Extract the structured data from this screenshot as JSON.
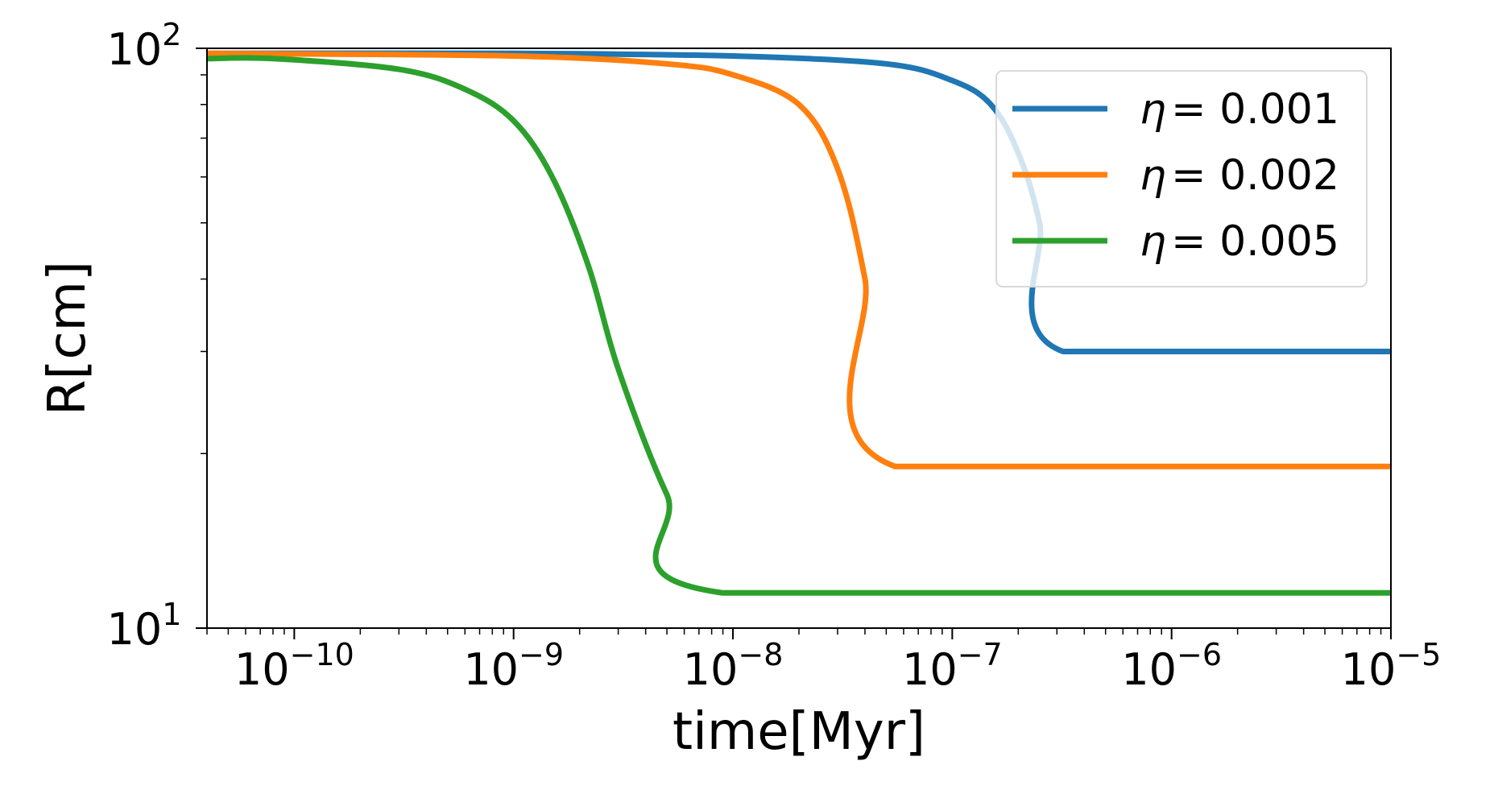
{
  "chart_data": {
    "type": "line",
    "xlabel": "time[Myr]",
    "ylabel": "R[cm]",
    "xscale": "log",
    "yscale": "log",
    "xlim": [
      4e-11,
      1e-05
    ],
    "ylim": [
      10,
      100
    ],
    "x_ticks": [
      {
        "value": 1e-10,
        "base": "10",
        "exp": "−10"
      },
      {
        "value": 1e-09,
        "base": "10",
        "exp": "−9"
      },
      {
        "value": 1e-08,
        "base": "10",
        "exp": "−8"
      },
      {
        "value": 1e-07,
        "base": "10",
        "exp": "−7"
      },
      {
        "value": 1e-06,
        "base": "10",
        "exp": "−6"
      },
      {
        "value": 1e-05,
        "base": "10",
        "exp": "−5"
      }
    ],
    "y_ticks": [
      {
        "value": 10,
        "base": "10",
        "exp": "1"
      },
      {
        "value": 100,
        "base": "10",
        "exp": "2"
      }
    ],
    "grid": false,
    "legend_position": "top-right",
    "series": [
      {
        "name": "η = 0.001",
        "label_symbol": "η",
        "label_value": "= 0.001",
        "color": "#1f77b4",
        "points": [
          [
            4e-11,
            98
          ],
          [
            1e-09,
            98
          ],
          [
            1e-08,
            97
          ],
          [
            5e-08,
            94
          ],
          [
            1e-07,
            88
          ],
          [
            1.5e-07,
            80
          ],
          [
            2e-07,
            66
          ],
          [
            2.5e-07,
            50
          ],
          [
            3.2e-07,
            30
          ],
          [
            1e-05,
            30
          ]
        ]
      },
      {
        "name": "η = 0.002",
        "label_symbol": "η",
        "label_value": "= 0.002",
        "color": "#ff7f0e",
        "points": [
          [
            4e-11,
            98
          ],
          [
            1e-09,
            97
          ],
          [
            5e-09,
            94
          ],
          [
            1e-08,
            90
          ],
          [
            2e-08,
            80
          ],
          [
            3e-08,
            62
          ],
          [
            4e-08,
            40
          ],
          [
            5.5e-08,
            19
          ],
          [
            1e-05,
            19
          ]
        ]
      },
      {
        "name": "η = 0.005",
        "label_symbol": "η",
        "label_value": "= 0.005",
        "color": "#2ca02c",
        "points": [
          [
            4e-11,
            96
          ],
          [
            8e-11,
            96
          ],
          [
            3e-10,
            92
          ],
          [
            6e-10,
            85
          ],
          [
            1e-09,
            75
          ],
          [
            1.5e-09,
            60
          ],
          [
            2.2e-09,
            42
          ],
          [
            3e-09,
            28
          ],
          [
            5e-09,
            17
          ],
          [
            9e-09,
            11.5
          ],
          [
            1e-05,
            11.5
          ]
        ]
      }
    ]
  }
}
